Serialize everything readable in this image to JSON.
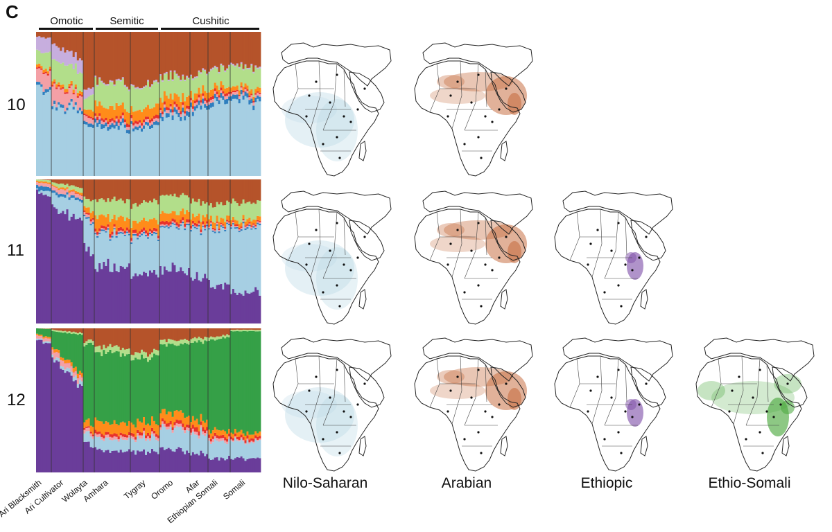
{
  "panel_letter": "C",
  "language_groups": [
    {
      "label": "Omotic"
    },
    {
      "label": "Semitic"
    },
    {
      "label": "Cushitic"
    }
  ],
  "colors": {
    "light_blue": "#a6cfe3",
    "dark_blue": "#2f7fbf",
    "orange": "#ff8c1a",
    "red": "#e8312a",
    "pink": "#f4a0a6",
    "lavender": "#c7aede",
    "light_green": "#b2de8a",
    "brown": "#b5532a",
    "purple": "#6a3d9a",
    "green": "#35a047",
    "nilo_saharan_map": "#b9d9e6",
    "arabian_map": "#c56a3c",
    "ethiopic_map": "#7a4aa6",
    "ethio_somali_map": "#4aa83c"
  },
  "chart_data": {
    "type": "stacked_bar_admixture",
    "title": "",
    "ylim": [
      0,
      1
    ],
    "populations": [
      "Ari Blacksmith",
      "Ari Cultivator",
      "Wolayta",
      "Amhara",
      "Tygray",
      "Oromo",
      "Afar",
      "Ethiopian Somali",
      "Somali"
    ],
    "population_group": [
      "Omotic",
      "Omotic",
      "Omotic",
      "Semitic",
      "Semitic",
      "Cushitic",
      "Cushitic",
      "Cushitic",
      "Cushitic"
    ],
    "component_order_bottom_to_top": [
      "purple",
      "light_blue",
      "dark_blue",
      "pink",
      "red",
      "orange",
      "green",
      "light_green",
      "lavender",
      "brown"
    ],
    "rows": [
      {
        "k": "10",
        "proportions": {
          "light_blue": [
            0.62,
            0.5,
            0.36,
            0.34,
            0.34,
            0.4,
            0.46,
            0.5,
            0.52
          ],
          "dark_blue": [
            0.02,
            0.02,
            0.02,
            0.03,
            0.02,
            0.03,
            0.03,
            0.03,
            0.03
          ],
          "pink": [
            0.1,
            0.12,
            0.04,
            0.02,
            0.02,
            0.02,
            0.02,
            0.02,
            0.02
          ],
          "red": [
            0.01,
            0.01,
            0.01,
            0.02,
            0.02,
            0.02,
            0.02,
            0.02,
            0.01
          ],
          "orange": [
            0.02,
            0.02,
            0.03,
            0.08,
            0.07,
            0.07,
            0.05,
            0.04,
            0.03
          ],
          "light_green": [
            0.1,
            0.15,
            0.08,
            0.16,
            0.15,
            0.14,
            0.12,
            0.12,
            0.14
          ],
          "lavender": [
            0.1,
            0.1,
            0.06,
            0.01,
            0.01,
            0.01,
            0.01,
            0.01,
            0.01
          ],
          "brown": [
            0.03,
            0.08,
            0.4,
            0.34,
            0.37,
            0.31,
            0.29,
            0.26,
            0.24
          ]
        }
      },
      {
        "k": "11",
        "proportions": {
          "purple": [
            0.92,
            0.8,
            0.52,
            0.4,
            0.33,
            0.38,
            0.32,
            0.28,
            0.22
          ],
          "light_blue": [
            0.01,
            0.1,
            0.22,
            0.22,
            0.26,
            0.3,
            0.34,
            0.38,
            0.44
          ],
          "dark_blue": [
            0.03,
            0.02,
            0.01,
            0.01,
            0.01,
            0.01,
            0.01,
            0.01,
            0.01
          ],
          "pink": [
            0.02,
            0.03,
            0.02,
            0.01,
            0.01,
            0.01,
            0.01,
            0.01,
            0.01
          ],
          "red": [
            0.0,
            0.0,
            0.01,
            0.02,
            0.02,
            0.02,
            0.02,
            0.01,
            0.01
          ],
          "orange": [
            0.01,
            0.01,
            0.03,
            0.08,
            0.07,
            0.06,
            0.05,
            0.04,
            0.03
          ],
          "light_green": [
            0.01,
            0.02,
            0.06,
            0.12,
            0.13,
            0.12,
            0.1,
            0.1,
            0.12
          ],
          "brown": [
            0.0,
            0.02,
            0.13,
            0.14,
            0.17,
            0.1,
            0.15,
            0.17,
            0.16
          ]
        }
      },
      {
        "k": "12",
        "proportions": {
          "purple": [
            0.92,
            0.78,
            0.22,
            0.16,
            0.14,
            0.16,
            0.14,
            0.1,
            0.1
          ],
          "light_blue": [
            0.01,
            0.02,
            0.06,
            0.08,
            0.08,
            0.14,
            0.14,
            0.12,
            0.12
          ],
          "pink": [
            0.02,
            0.04,
            0.02,
            0.02,
            0.02,
            0.02,
            0.02,
            0.02,
            0.01
          ],
          "red": [
            0.0,
            0.0,
            0.01,
            0.02,
            0.02,
            0.02,
            0.03,
            0.02,
            0.02
          ],
          "orange": [
            0.01,
            0.02,
            0.04,
            0.08,
            0.07,
            0.07,
            0.05,
            0.04,
            0.03
          ],
          "green": [
            0.04,
            0.12,
            0.55,
            0.48,
            0.45,
            0.48,
            0.52,
            0.62,
            0.7
          ],
          "light_green": [
            0.0,
            0.01,
            0.02,
            0.04,
            0.04,
            0.03,
            0.03,
            0.02,
            0.01
          ],
          "brown": [
            0.0,
            0.01,
            0.08,
            0.12,
            0.18,
            0.08,
            0.07,
            0.06,
            0.01
          ]
        }
      }
    ],
    "map_panels": [
      {
        "component": "Nilo-Saharan",
        "rows": [
          "10",
          "11",
          "12"
        ]
      },
      {
        "component": "Arabian",
        "rows": [
          "10",
          "11",
          "12"
        ]
      },
      {
        "component": "Ethiopic",
        "rows": [
          "11",
          "12"
        ]
      },
      {
        "component": "Ethio-Somali",
        "rows": [
          "12"
        ]
      }
    ]
  },
  "map_captions": [
    "Nilo-Saharan",
    "Arabian",
    "Ethiopic",
    "Ethio-Somali"
  ]
}
